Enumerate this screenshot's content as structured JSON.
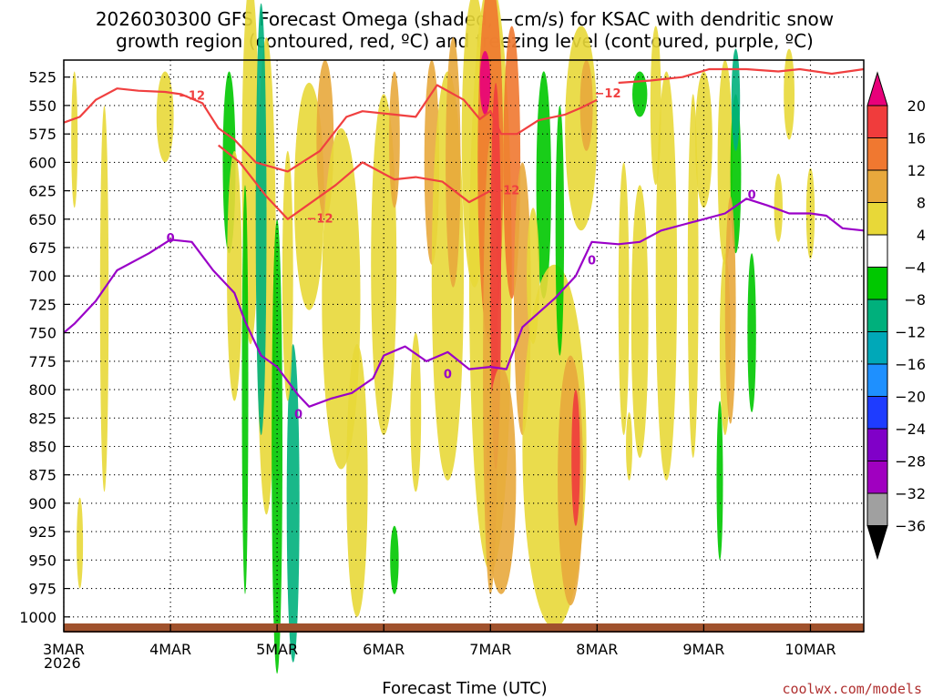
{
  "chart_data": {
    "type": "heatmap",
    "title_line1": "2026030300 GFS Forecast Omega (shaded, −cm/s) for KSAC with dendritic snow",
    "title_line2": "growth region (contoured, red, ºC) and freezing level (contoured, purple, ºC)",
    "xlabel": "Forecast Time (UTC)",
    "ylabel": "",
    "credit": "coolwx.com/models",
    "x_range_days": [
      0,
      7.5
    ],
    "x_ticks": [
      {
        "day": 0,
        "label": "3MAR"
      },
      {
        "day": 1,
        "label": "4MAR"
      },
      {
        "day": 2,
        "label": "5MAR"
      },
      {
        "day": 3,
        "label": "6MAR"
      },
      {
        "day": 4,
        "label": "7MAR"
      },
      {
        "day": 5,
        "label": "8MAR"
      },
      {
        "day": 6,
        "label": "9MAR"
      },
      {
        "day": 7,
        "label": "10MAR"
      }
    ],
    "x_year_label": "2026",
    "y_range_hpa": [
      1013,
      510
    ],
    "y_ticks": [
      525,
      550,
      575,
      600,
      625,
      650,
      675,
      700,
      725,
      750,
      775,
      800,
      825,
      850,
      875,
      900,
      925,
      950,
      975,
      1000
    ],
    "colorbar": {
      "levels": [
        "20",
        "16",
        "12",
        "8",
        "4",
        "−4",
        "−8",
        "−12",
        "−16",
        "−20",
        "−24",
        "−28",
        "−32",
        "−36"
      ],
      "colors": [
        "#e8007a",
        "#f03c3c",
        "#f07830",
        "#e8a83c",
        "#e8d838",
        "#ffffff",
        "#00c800",
        "#00b07c",
        "#00a8b8",
        "#1e90ff",
        "#1e3cff",
        "#8000c8",
        "#a000c0",
        "#a0a0a0",
        "#000000"
      ]
    },
    "freezing_level": {
      "label": "0",
      "color": "#9a00c8",
      "points": [
        [
          0,
          750
        ],
        [
          0.1,
          742
        ],
        [
          0.3,
          722
        ],
        [
          0.5,
          695
        ],
        [
          0.8,
          680
        ],
        [
          1.0,
          668
        ],
        [
          1.2,
          670
        ],
        [
          1.4,
          695
        ],
        [
          1.6,
          715
        ],
        [
          1.7,
          740
        ],
        [
          1.85,
          770
        ],
        [
          2.0,
          780
        ],
        [
          2.2,
          805
        ],
        [
          2.3,
          815
        ],
        [
          2.5,
          808
        ],
        [
          2.7,
          803
        ],
        [
          2.9,
          790
        ],
        [
          3.0,
          770
        ],
        [
          3.2,
          762
        ],
        [
          3.4,
          775
        ],
        [
          3.6,
          767
        ],
        [
          3.8,
          782
        ],
        [
          4.0,
          780
        ],
        [
          4.15,
          782
        ],
        [
          4.3,
          745
        ],
        [
          4.6,
          720
        ],
        [
          4.8,
          700
        ],
        [
          4.95,
          670
        ],
        [
          5.2,
          672
        ],
        [
          5.4,
          670
        ],
        [
          5.6,
          660
        ],
        [
          5.8,
          655
        ],
        [
          6.0,
          650
        ],
        [
          6.2,
          645
        ],
        [
          6.4,
          632
        ],
        [
          6.6,
          638
        ],
        [
          6.8,
          645
        ],
        [
          7.0,
          645
        ],
        [
          7.15,
          647
        ],
        [
          7.3,
          658
        ],
        [
          7.5,
          660
        ]
      ]
    },
    "dgz_upper": {
      "label": "−12",
      "color": "#f04040",
      "points": [
        [
          0,
          565
        ],
        [
          0.15,
          560
        ],
        [
          0.3,
          545
        ],
        [
          0.5,
          535
        ],
        [
          0.7,
          537
        ],
        [
          0.95,
          538
        ],
        [
          1.1,
          540
        ],
        [
          1.3,
          548
        ],
        [
          1.45,
          570
        ],
        [
          1.6,
          580
        ],
        [
          1.8,
          600
        ],
        [
          2.1,
          608
        ],
        [
          2.4,
          590
        ],
        [
          2.65,
          560
        ],
        [
          2.8,
          555
        ],
        [
          3.1,
          558
        ],
        [
          3.3,
          560
        ],
        [
          3.5,
          532
        ],
        [
          3.75,
          545
        ],
        [
          3.9,
          562
        ],
        [
          4.0,
          555
        ],
        [
          4.1,
          575
        ],
        [
          4.25,
          575
        ],
        [
          4.45,
          563
        ],
        [
          4.7,
          558
        ],
        [
          4.85,
          552
        ],
        [
          5.0,
          545
        ]
      ]
    },
    "dgz_lower": {
      "label": "−12",
      "color": "#f04040",
      "points": [
        [
          1.45,
          585
        ],
        [
          1.65,
          600
        ],
        [
          1.9,
          630
        ],
        [
          2.1,
          650
        ],
        [
          2.25,
          640
        ],
        [
          2.4,
          630
        ],
        [
          2.55,
          620
        ],
        [
          2.8,
          600
        ],
        [
          3.1,
          615
        ],
        [
          3.3,
          613
        ],
        [
          3.55,
          617
        ],
        [
          3.8,
          635
        ],
        [
          4.0,
          625
        ]
      ]
    },
    "dgz_top_right": {
      "label": "",
      "color": "#f04040",
      "points": [
        [
          5.2,
          530
        ],
        [
          5.5,
          528
        ],
        [
          5.8,
          525
        ],
        [
          6.05,
          518
        ],
        [
          6.4,
          518
        ],
        [
          6.7,
          520
        ],
        [
          6.9,
          518
        ],
        [
          7.2,
          522
        ],
        [
          7.5,
          518
        ]
      ]
    }
  }
}
